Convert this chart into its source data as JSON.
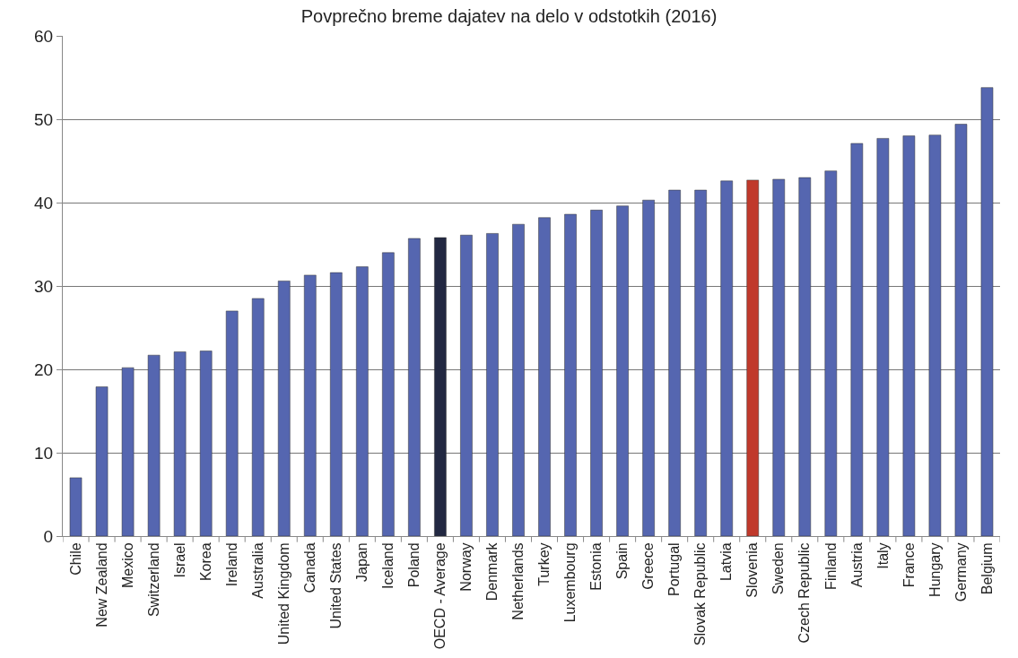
{
  "chart_data": {
    "type": "bar",
    "title": "Povprečno breme dajatev na delo v odstotkih (2016)",
    "categories": [
      "Chile",
      "New Zealand",
      "Mexico",
      "Switzerland",
      "Israel",
      "Korea",
      "Ireland",
      "Australia",
      "United Kingdom",
      "Canada",
      "United States",
      "Japan",
      "Iceland",
      "Poland",
      "OECD - Average",
      "Norway",
      "Denmark",
      "Netherlands",
      "Turkey",
      "Luxembourg",
      "Estonia",
      "Spain",
      "Greece",
      "Portugal",
      "Slovak Republic",
      "Latvia",
      "Slovenia",
      "Sweden",
      "Czech Republic",
      "Finland",
      "Austria",
      "Italy",
      "France",
      "Hungary",
      "Germany",
      "Belgium"
    ],
    "values": [
      7.0,
      17.9,
      20.2,
      21.7,
      22.1,
      22.2,
      27.0,
      28.5,
      30.6,
      31.3,
      31.6,
      32.3,
      34.0,
      35.7,
      35.8,
      36.1,
      36.3,
      37.4,
      38.2,
      38.6,
      39.1,
      39.6,
      40.3,
      41.5,
      41.5,
      42.6,
      42.7,
      42.8,
      43.0,
      43.8,
      47.1,
      47.7,
      48.0,
      48.1,
      49.4,
      53.8
    ],
    "colors": [
      "#5566b0",
      "#5566b0",
      "#5566b0",
      "#5566b0",
      "#5566b0",
      "#5566b0",
      "#5566b0",
      "#5566b0",
      "#5566b0",
      "#5566b0",
      "#5566b0",
      "#5566b0",
      "#5566b0",
      "#5566b0",
      "#222842",
      "#5566b0",
      "#5566b0",
      "#5566b0",
      "#5566b0",
      "#5566b0",
      "#5566b0",
      "#5566b0",
      "#5566b0",
      "#5566b0",
      "#5566b0",
      "#5566b0",
      "#c0392b",
      "#5566b0",
      "#5566b0",
      "#5566b0",
      "#5566b0",
      "#5566b0",
      "#5566b0",
      "#5566b0",
      "#5566b0",
      "#5566b0"
    ],
    "ylim": [
      0,
      60
    ],
    "yticks": [
      0,
      10,
      20,
      30,
      40,
      50,
      60
    ],
    "grid": "y"
  }
}
